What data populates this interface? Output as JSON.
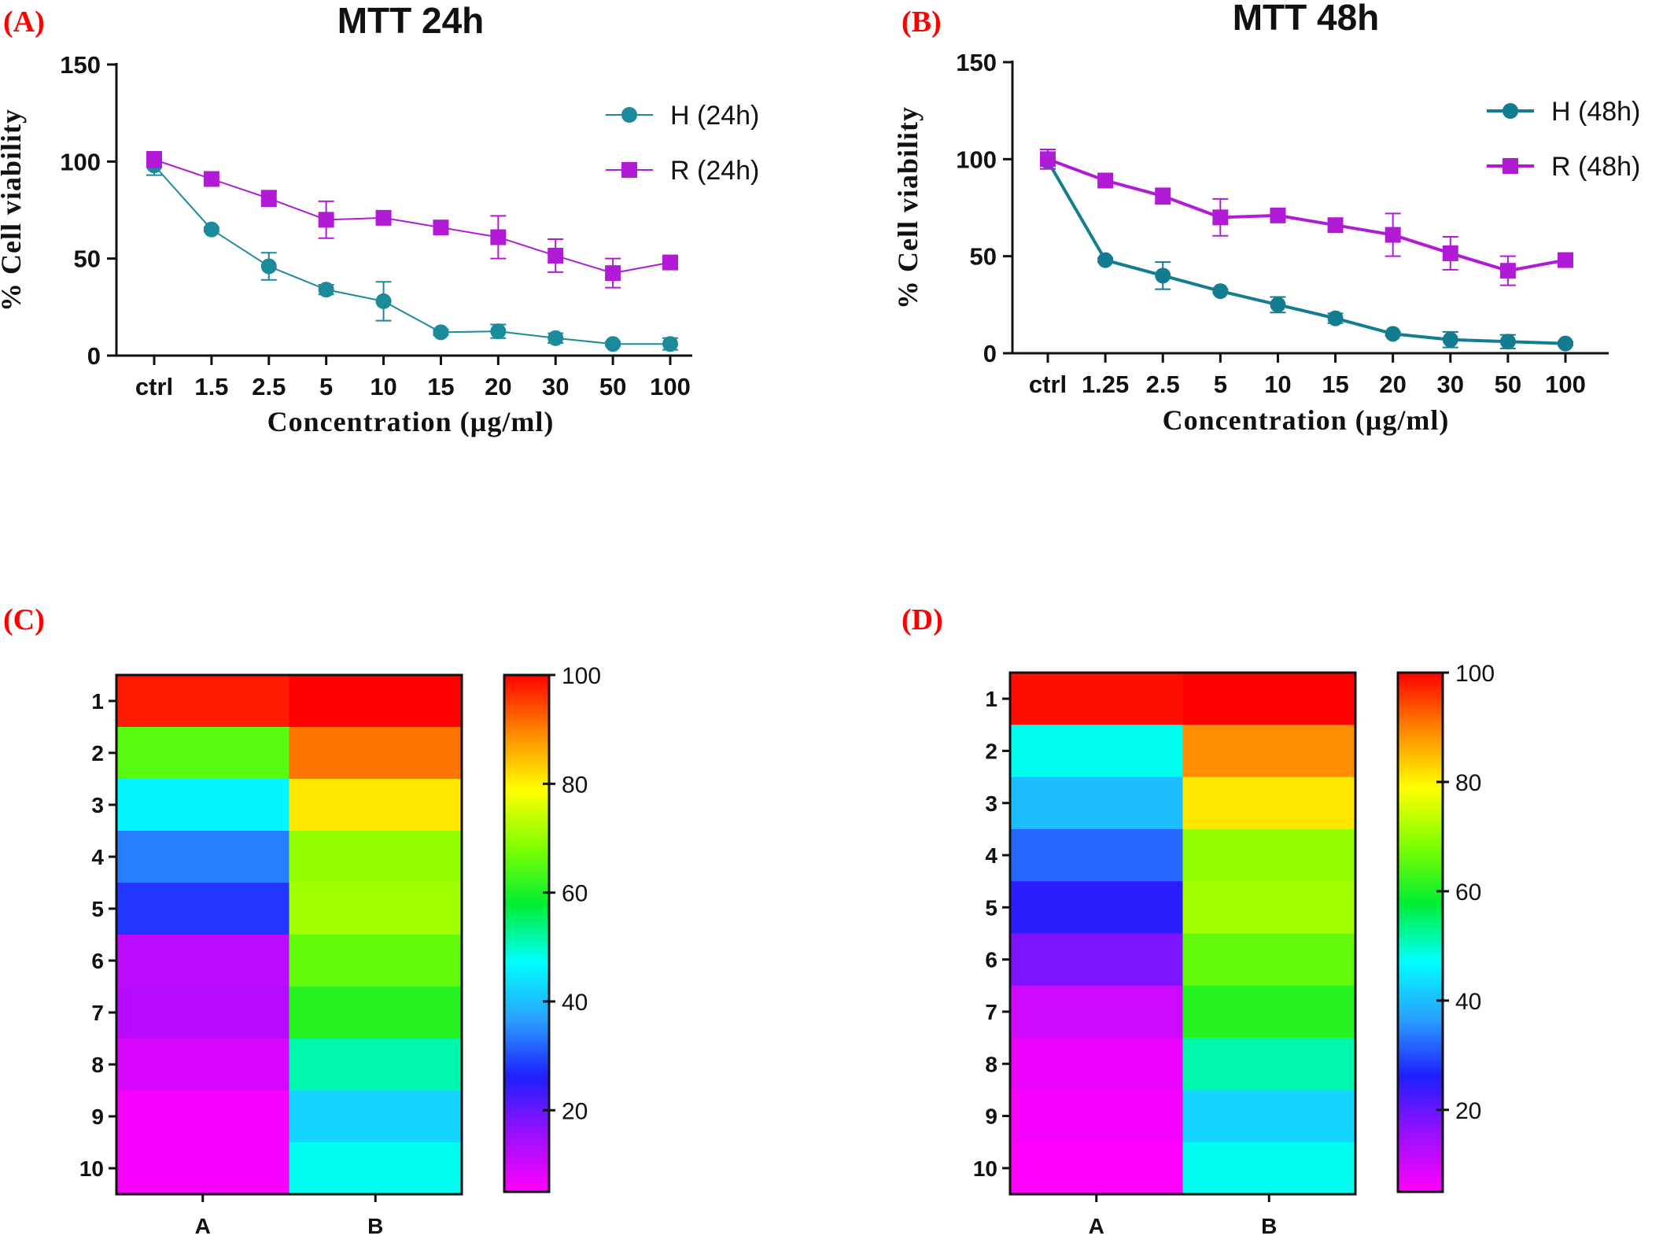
{
  "panels": {
    "A": "(A)",
    "B": "(B)",
    "C": "(C)",
    "D": "(D)"
  },
  "chart_data": [
    {
      "type": "line",
      "title": "MTT 24h",
      "xlabel": "Concentration (µg/ml)",
      "ylabel": "% Cell viability",
      "categories": [
        "ctrl",
        "1.5",
        "2.5",
        "5",
        "10",
        "15",
        "20",
        "30",
        "50",
        "100"
      ],
      "ylim": [
        0,
        150
      ],
      "yticks": [
        0,
        50,
        100,
        150
      ],
      "legend_position": "top-right",
      "series": [
        {
          "name": "H (24h)",
          "marker": "circle",
          "color": "#1b8a9a",
          "values": [
            98,
            65,
            46,
            34,
            28,
            12,
            12.5,
            9,
            6,
            6
          ],
          "errors": [
            5,
            1,
            7,
            2.5,
            10,
            1.5,
            3.5,
            2.5,
            1,
            3
          ]
        },
        {
          "name": "R (24h)",
          "marker": "square",
          "color": "#b21bd6",
          "values": [
            101,
            91,
            81,
            70,
            71,
            66,
            61,
            51.5,
            42.5,
            48
          ],
          "errors": [
            4,
            1.5,
            4,
            9.5,
            2,
            3,
            11,
            8.5,
            7.5,
            1.5
          ]
        }
      ]
    },
    {
      "type": "line",
      "title": "MTT 48h",
      "xlabel": "Concentration (µg/ml)",
      "ylabel": "% Cell viability",
      "categories": [
        "ctrl",
        "1.25",
        "2.5",
        "5",
        "10",
        "15",
        "20",
        "30",
        "50",
        "100"
      ],
      "ylim": [
        0,
        150
      ],
      "yticks": [
        0,
        50,
        100,
        150
      ],
      "legend_position": "top-right",
      "series": [
        {
          "name": "H (48h)",
          "marker": "circle",
          "color": "#137c90",
          "values": [
            99,
            48,
            40,
            32,
            25,
            18,
            10,
            7,
            6,
            5
          ],
          "errors": [
            4,
            1,
            7,
            1,
            4,
            2.5,
            1,
            4,
            3.5,
            1
          ]
        },
        {
          "name": "R (48h)",
          "marker": "square",
          "color": "#b21bd6",
          "values": [
            100,
            89,
            81,
            70,
            71,
            66,
            61,
            51.5,
            42.5,
            48
          ],
          "errors": [
            5,
            1.5,
            4,
            9.5,
            2,
            3,
            11,
            8.5,
            7.5,
            1.5
          ]
        }
      ]
    },
    {
      "type": "heatmap",
      "columns": [
        "A",
        "B"
      ],
      "rows": [
        "1",
        "2",
        "3",
        "4",
        "5",
        "6",
        "7",
        "8",
        "9",
        "10"
      ],
      "values": [
        [
          98,
          101
        ],
        [
          65,
          91
        ],
        [
          46,
          81
        ],
        [
          34,
          70
        ],
        [
          28,
          71
        ],
        [
          12,
          66
        ],
        [
          12.5,
          61
        ],
        [
          9,
          51.5
        ],
        [
          6,
          42.5
        ],
        [
          6,
          48
        ]
      ],
      "colorbar": {
        "range": [
          5,
          100
        ],
        "ticks": [
          20,
          40,
          60,
          80,
          100
        ],
        "colors": [
          "#ff00ff",
          "#9a10ff",
          "#1f1fff",
          "#2aa0ff",
          "#00ffff",
          "#00ee33",
          "#80ff00",
          "#ffff00",
          "#ff8800",
          "#ff0000"
        ]
      }
    },
    {
      "type": "heatmap",
      "columns": [
        "A",
        "B"
      ],
      "rows": [
        "1",
        "2",
        "3",
        "4",
        "5",
        "6",
        "7",
        "8",
        "9",
        "10"
      ],
      "values": [
        [
          99,
          100
        ],
        [
          48,
          89
        ],
        [
          40,
          81
        ],
        [
          32,
          70
        ],
        [
          25,
          71
        ],
        [
          18,
          66
        ],
        [
          10,
          61
        ],
        [
          7,
          51.5
        ],
        [
          6,
          42.5
        ],
        [
          5,
          48
        ]
      ],
      "colorbar": {
        "range": [
          5,
          100
        ],
        "ticks": [
          20,
          40,
          60,
          80,
          100
        ],
        "colors": [
          "#ff00ff",
          "#9a10ff",
          "#1f1fff",
          "#2aa0ff",
          "#00ffff",
          "#00ee33",
          "#80ff00",
          "#ffff00",
          "#ff8800",
          "#ff0000"
        ]
      }
    }
  ]
}
